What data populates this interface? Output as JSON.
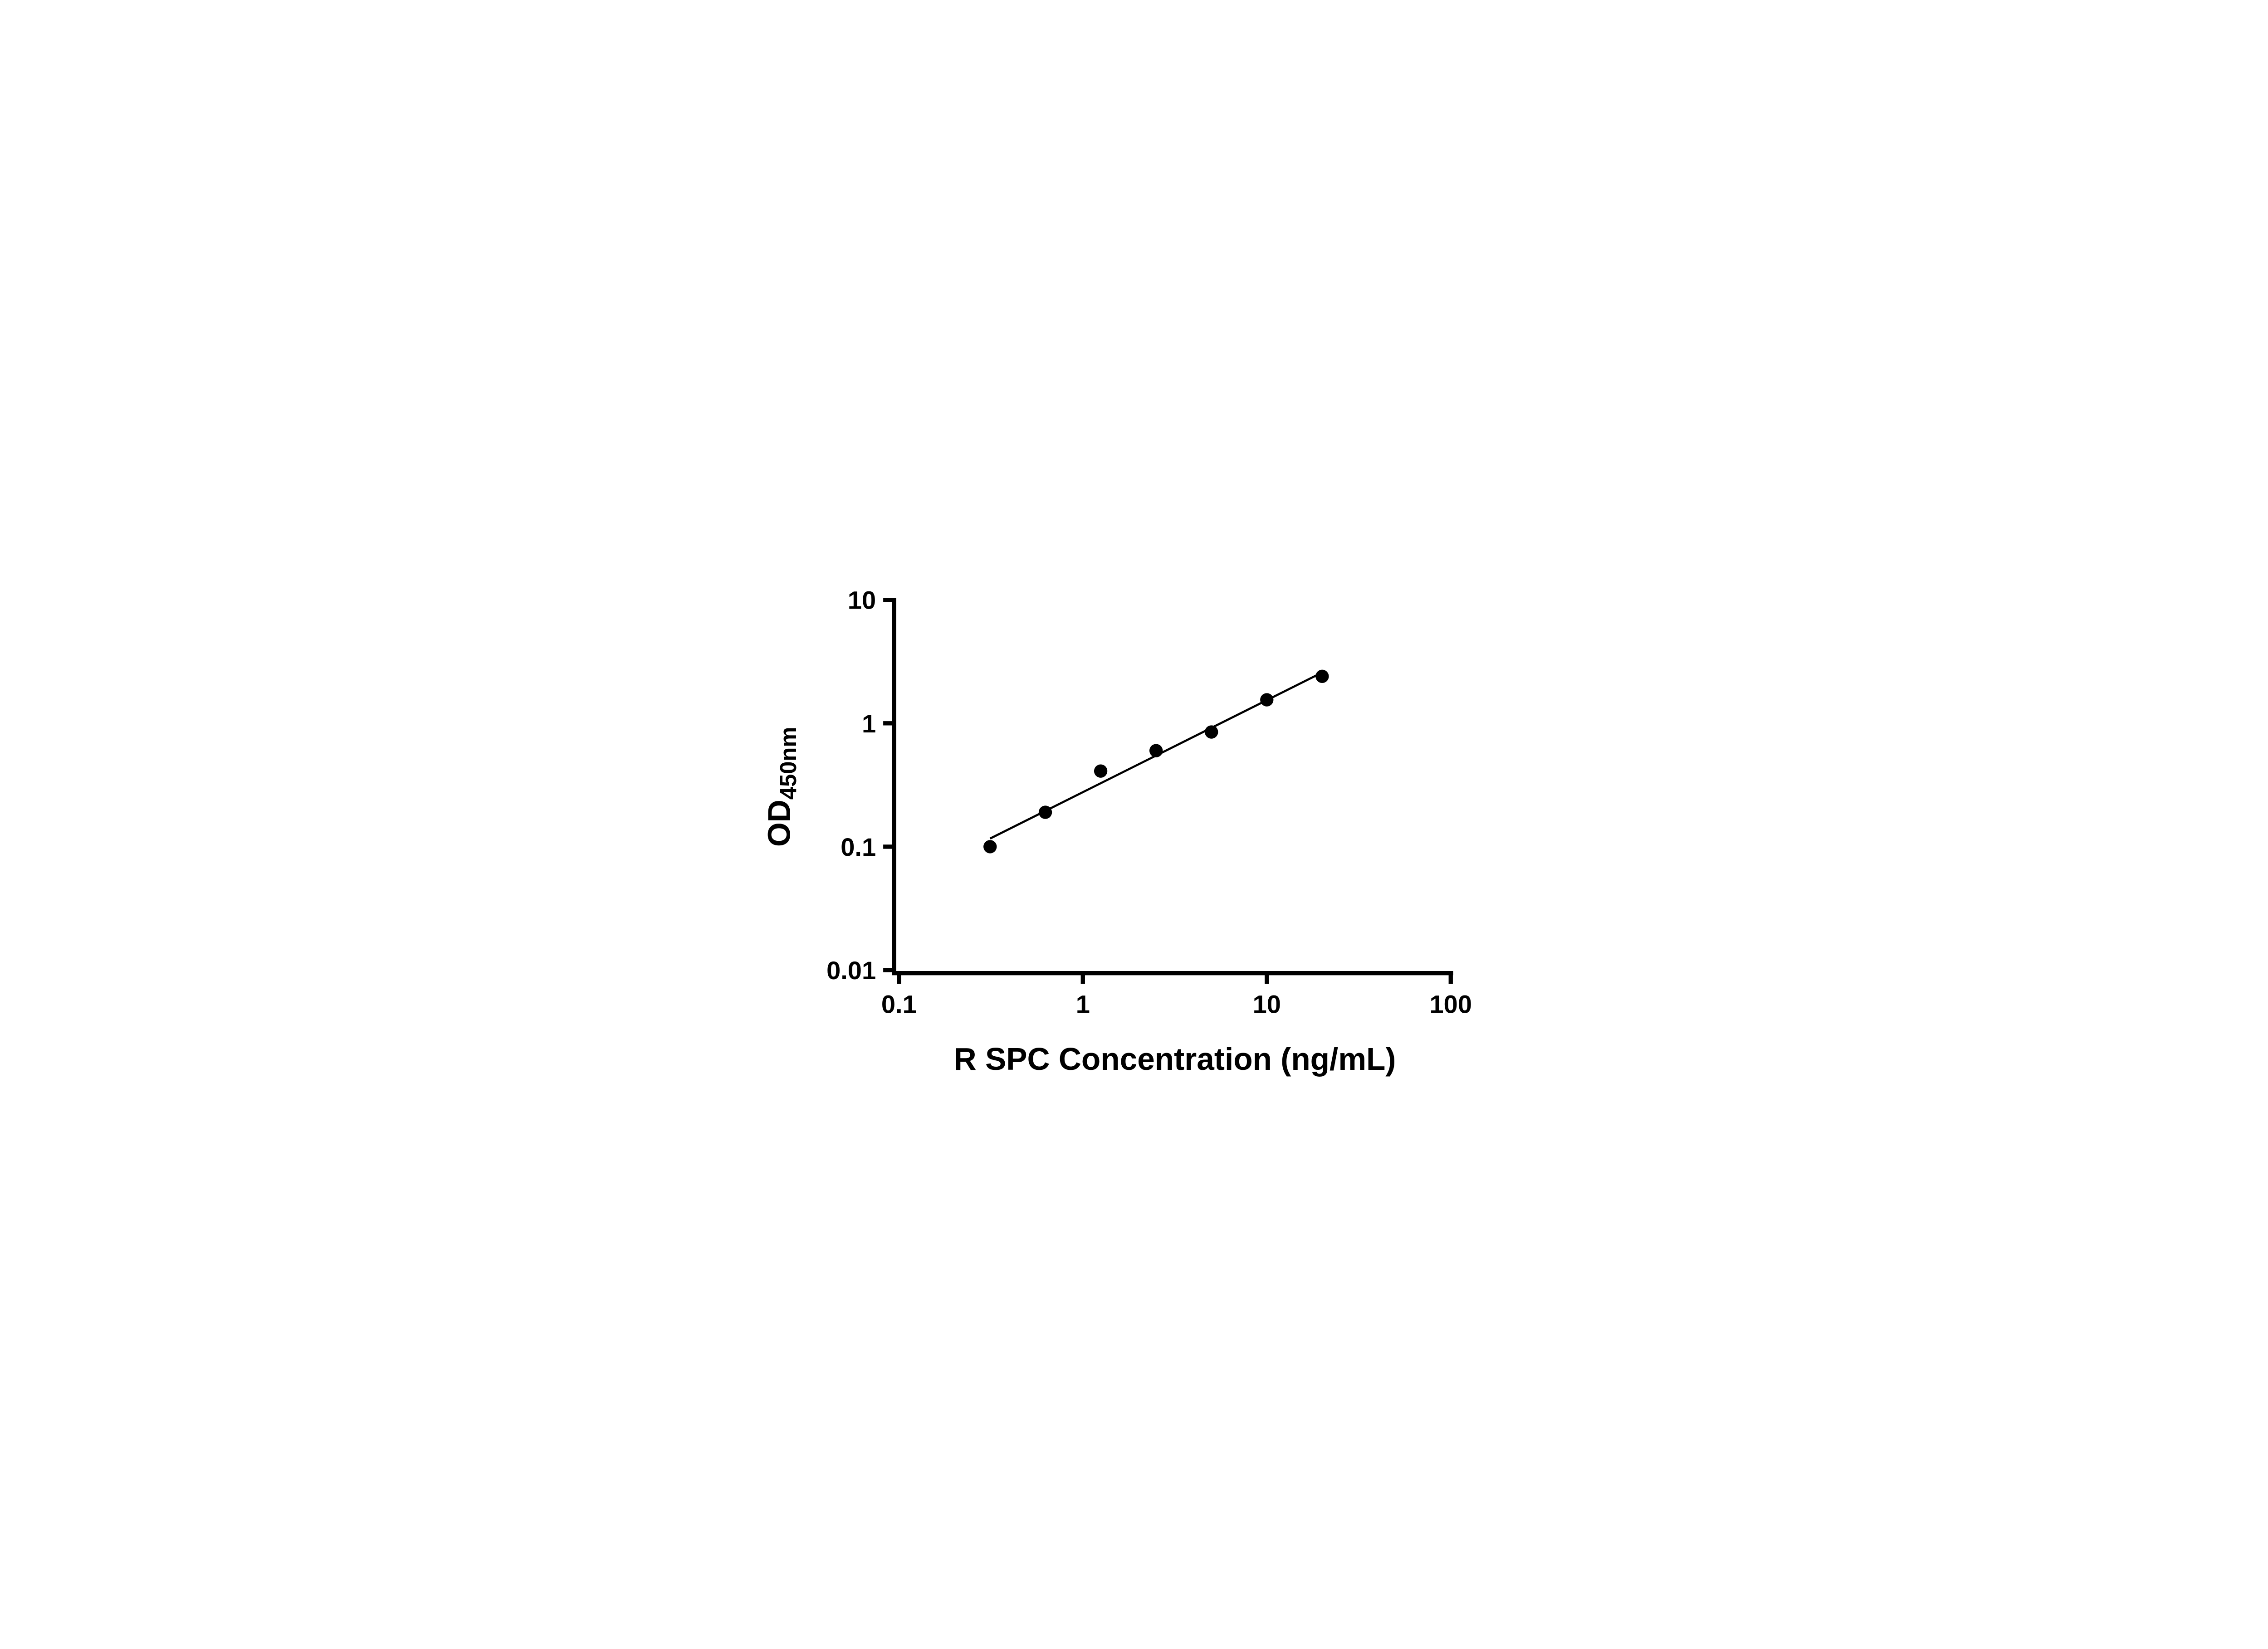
{
  "chart_data": {
    "type": "scatter",
    "title": "",
    "xlabel": "R SPC Concentration (ng/mL)",
    "ylabel_main": "OD",
    "ylabel_sub": "450nm",
    "x_scale": "log",
    "y_scale": "log",
    "xlim": [
      0.1,
      100
    ],
    "ylim": [
      0.01,
      10
    ],
    "x_ticks": [
      0.1,
      1,
      10,
      100
    ],
    "x_tick_labels": [
      "0.1",
      "1",
      "10",
      "100"
    ],
    "y_ticks": [
      0.01,
      0.1,
      1,
      10
    ],
    "y_tick_labels": [
      "0.01",
      "0.1",
      "1",
      "10"
    ],
    "grid": "off",
    "legend": "none",
    "series": [
      {
        "name": "standard-curve-points",
        "type": "scatter",
        "marker": "circle",
        "color": "#000000",
        "points": [
          {
            "x": 0.313,
            "y": 0.1
          },
          {
            "x": 0.625,
            "y": 0.19
          },
          {
            "x": 1.25,
            "y": 0.41
          },
          {
            "x": 2.5,
            "y": 0.6
          },
          {
            "x": 5,
            "y": 0.85
          },
          {
            "x": 10,
            "y": 1.55
          },
          {
            "x": 20,
            "y": 2.4
          }
        ]
      }
    ],
    "fit_line": {
      "type": "power-regression",
      "x_start": 0.313,
      "x_end": 20,
      "color": "#000000"
    },
    "colors": {
      "axis": "#000000",
      "marker": "#000000",
      "background": "#ffffff"
    }
  }
}
